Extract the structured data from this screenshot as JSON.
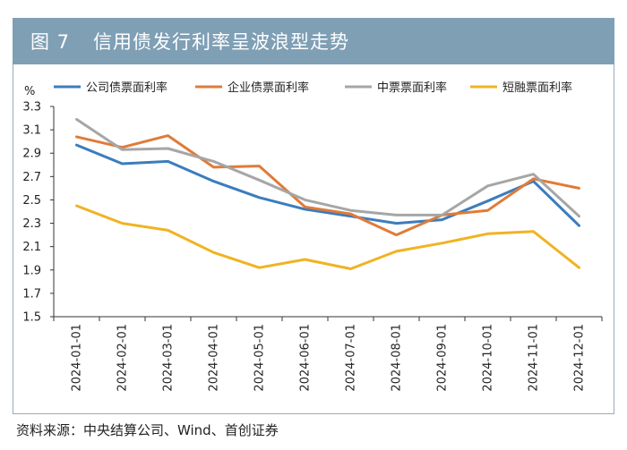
{
  "figure": {
    "number": "图 7",
    "title": "信用债发行利率呈波浪型走势"
  },
  "source": "资料来源：中央结算公司、Wind、首创证券",
  "colors": {
    "header_bg": "#7f9fb5",
    "series": [
      "#3b7dbd",
      "#e07b39",
      "#a6a6a6",
      "#f0b323"
    ]
  },
  "chart_data": {
    "type": "line",
    "title": "信用债发行利率呈波浪型走势",
    "unit": "%",
    "xlabel": "",
    "ylabel": "%",
    "ylim": [
      1.5,
      3.3
    ],
    "yticks": [
      1.5,
      1.7,
      1.9,
      2.1,
      2.3,
      2.5,
      2.7,
      2.9,
      3.1,
      3.3
    ],
    "legend_position": "top",
    "grid": false,
    "categories": [
      "2024-01-01",
      "2024-02-01",
      "2024-03-01",
      "2024-04-01",
      "2024-05-01",
      "2024-06-01",
      "2024-07-01",
      "2024-08-01",
      "2024-09-01",
      "2024-10-01",
      "2024-11-01",
      "2024-12-01"
    ],
    "series": [
      {
        "name": "公司债票面利率",
        "color": "#3b7dbd",
        "values": [
          2.97,
          2.81,
          2.83,
          2.66,
          2.52,
          2.42,
          2.36,
          2.3,
          2.33,
          2.49,
          2.66,
          2.28
        ]
      },
      {
        "name": "企业债票面利率",
        "color": "#e07b39",
        "values": [
          3.04,
          2.95,
          3.05,
          2.78,
          2.79,
          2.44,
          2.38,
          2.2,
          2.37,
          2.41,
          2.68,
          2.6
        ]
      },
      {
        "name": "中票票面利率",
        "color": "#a6a6a6",
        "values": [
          3.19,
          2.93,
          2.94,
          2.83,
          2.67,
          2.5,
          2.41,
          2.37,
          2.37,
          2.62,
          2.72,
          2.36
        ]
      },
      {
        "name": "短融票面利率",
        "color": "#f0b323",
        "values": [
          2.45,
          2.3,
          2.24,
          2.05,
          1.92,
          1.99,
          1.91,
          2.06,
          2.13,
          2.21,
          2.23,
          1.92
        ]
      }
    ]
  }
}
